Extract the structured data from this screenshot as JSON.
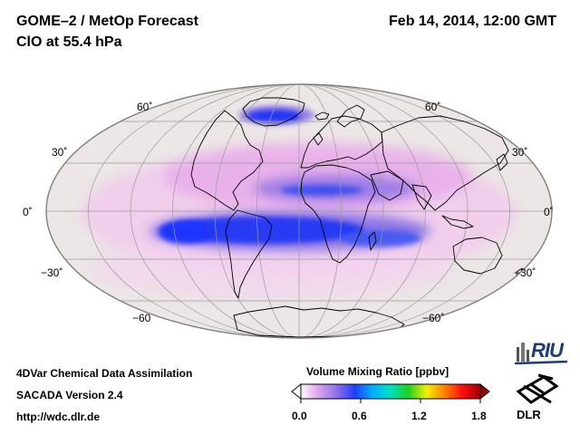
{
  "header": {
    "title": "GOME–2 / MetOp Forecast",
    "subtitle": "ClO at 55.4 hPa",
    "date": "Feb 14, 2014, 12:00 GMT"
  },
  "map": {
    "projection": "Mollweide",
    "lat_labels_left": [
      "60˚",
      "30˚",
      "0˚",
      "−30˚",
      "−60"
    ],
    "lat_labels_right": [
      "60˚",
      "30˚",
      "0˚",
      "−30˚",
      "−60˚"
    ],
    "colors": {
      "background": "#ece6e6",
      "outline": "#808080",
      "grid": "#9a9a9a",
      "coast": "#000000"
    }
  },
  "footer": {
    "line1": "4DVar Chemical Data Assimilation",
    "line2": "SACADA Version 2.4",
    "line3": "http://wdc.dlr.de"
  },
  "colorbar": {
    "title": "Volume Mixing Ratio [ppbv]",
    "ticks": [
      "0.0",
      "0.6",
      "1.2",
      "1.8"
    ],
    "range": [
      0.0,
      1.8
    ],
    "colors": [
      "#ffffff",
      "#e8b0f0",
      "#9070e8",
      "#2040ff",
      "#00b0ff",
      "#00e0c0",
      "#20d020",
      "#f0f000",
      "#ff8000",
      "#ff1010",
      "#a00000"
    ]
  },
  "logos": {
    "riu": "RIU",
    "dlr": "DLR"
  }
}
